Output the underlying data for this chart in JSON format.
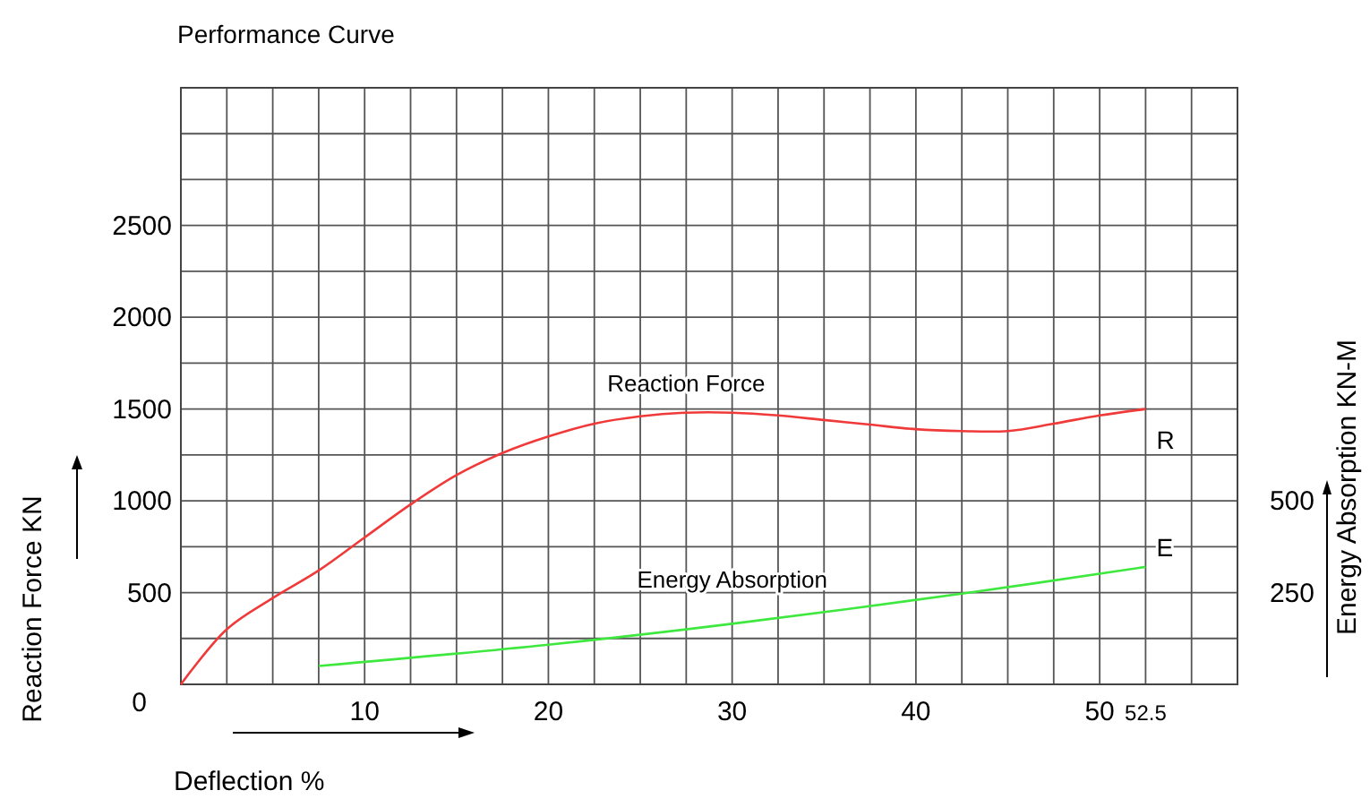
{
  "chart_data": {
    "type": "line",
    "title": "Performance Curve",
    "xlabel": "Deflection %",
    "ylabel": "Reaction Force KN",
    "y2label": "Energy Absorption KN-M",
    "xlim": [
      0,
      57.5
    ],
    "ylim": [
      0,
      3250
    ],
    "y2lim": [
      0,
      1625
    ],
    "xticks": [
      {
        "value": 0,
        "label": null
      },
      {
        "value": 2.5,
        "label": null
      },
      {
        "value": 5,
        "label": null
      },
      {
        "value": 7.5,
        "label": null
      },
      10,
      {
        "value": 12.5,
        "label": null
      },
      {
        "value": 15,
        "label": null
      },
      {
        "value": 17.5,
        "label": null
      },
      20,
      {
        "value": 22.5,
        "label": null
      },
      {
        "value": 25,
        "label": null
      },
      {
        "value": 27.5,
        "label": null
      },
      30,
      {
        "value": 32.5,
        "label": null
      },
      {
        "value": 35,
        "label": null
      },
      {
        "value": 37.5,
        "label": null
      },
      40,
      {
        "value": 42.5,
        "label": null
      },
      {
        "value": 45,
        "label": null
      },
      {
        "value": 47.5,
        "label": null
      },
      50,
      52.5,
      {
        "value": 55,
        "label": null
      },
      {
        "value": 57.5,
        "label": null
      }
    ],
    "yticks": [
      0,
      {
        "value": 250,
        "label": null
      },
      500,
      {
        "value": 750,
        "label": null
      },
      1000,
      {
        "value": 1250,
        "label": null
      },
      1500,
      {
        "value": 1750,
        "label": null
      },
      2000,
      {
        "value": 2250,
        "label": null
      },
      2500,
      {
        "value": 2750,
        "label": null
      },
      {
        "value": 3000,
        "label": null
      },
      {
        "value": 3250,
        "label": null
      }
    ],
    "y2ticks": [
      250,
      500
    ],
    "grid": true,
    "marker": "none",
    "line_style": "solid",
    "series": [
      {
        "name": "Reaction Force",
        "color": "#f03a3a",
        "x": [
          0,
          2.5,
          5,
          7.5,
          10,
          12.5,
          15,
          17.5,
          20,
          22.5,
          25,
          27.5,
          30,
          32.5,
          35,
          37.5,
          40,
          42.5,
          45,
          47.5,
          50,
          52.5
        ],
        "values": [
          0,
          300,
          470,
          620,
          800,
          980,
          1140,
          1260,
          1350,
          1420,
          1460,
          1480,
          1480,
          1465,
          1440,
          1415,
          1390,
          1380,
          1380,
          1420,
          1465,
          1500
        ]
      },
      {
        "name": "Energy Absorption",
        "color": "#3ee83e",
        "axis": "y2",
        "x": [
          7.5,
          20,
          30,
          42.5,
          52.5
        ],
        "values": [
          50,
          108,
          165,
          247,
          320
        ]
      }
    ],
    "annotations": [
      {
        "text": "R",
        "x": 52.5,
        "y": 1500
      },
      {
        "text": "E",
        "x": 52.5,
        "y": 640
      }
    ]
  }
}
